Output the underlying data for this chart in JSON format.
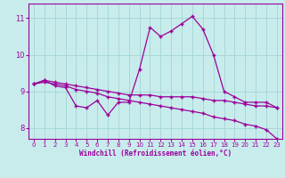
{
  "x": [
    0,
    1,
    2,
    3,
    4,
    5,
    6,
    7,
    8,
    9,
    10,
    11,
    12,
    13,
    14,
    15,
    16,
    17,
    18,
    19,
    20,
    21,
    22,
    23
  ],
  "line_volatile": [
    9.2,
    9.3,
    9.15,
    9.1,
    8.6,
    8.55,
    8.75,
    8.35,
    8.7,
    8.7,
    9.6,
    10.75,
    10.5,
    10.65,
    10.85,
    11.05,
    10.7,
    10.0,
    9.0,
    8.85,
    8.7,
    8.7,
    8.7,
    8.55
  ],
  "line_smooth": [
    9.2,
    9.3,
    9.25,
    9.2,
    9.15,
    9.1,
    9.05,
    9.0,
    8.95,
    8.9,
    8.9,
    8.9,
    8.85,
    8.85,
    8.85,
    8.85,
    8.8,
    8.75,
    8.75,
    8.7,
    8.65,
    8.6,
    8.6,
    8.55
  ],
  "line_diagonal": [
    9.2,
    9.25,
    9.2,
    9.15,
    9.05,
    9.0,
    8.95,
    8.85,
    8.8,
    8.75,
    8.7,
    8.65,
    8.6,
    8.55,
    8.5,
    8.45,
    8.4,
    8.3,
    8.25,
    8.2,
    8.1,
    8.05,
    7.95,
    7.7
  ],
  "color": "#9b009b",
  "bg_color": "#c8ecec",
  "grid_color": "#a8d8d8",
  "xlabel": "Windchill (Refroidissement éolien,°C)",
  "ylim": [
    7.7,
    11.4
  ],
  "xlim": [
    -0.5,
    23.5
  ],
  "yticks": [
    8,
    9,
    10,
    11
  ],
  "xticks": [
    0,
    1,
    2,
    3,
    4,
    5,
    6,
    7,
    8,
    9,
    10,
    11,
    12,
    13,
    14,
    15,
    16,
    17,
    18,
    19,
    20,
    21,
    22,
    23
  ],
  "marker": "+"
}
